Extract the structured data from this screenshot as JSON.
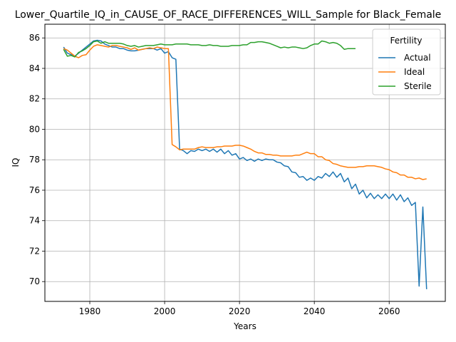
{
  "chart_data": {
    "type": "line",
    "title": "Lower_Quartile_IQ_in_CAUSE_OF_RACE_DIFFERENCES_WILL_Sample for Black_Female",
    "xlabel": "Years",
    "ylabel": "IQ",
    "xlim": [
      1968,
      2075
    ],
    "ylim": [
      68.7,
      86.9
    ],
    "xticks": [
      1980,
      2000,
      2020,
      2040,
      2060
    ],
    "yticks": [
      70,
      72,
      74,
      76,
      78,
      80,
      82,
      84,
      86
    ],
    "grid": true,
    "legend": {
      "title": "Fertility",
      "placement": "top-right"
    },
    "series": [
      {
        "name": "Actual",
        "color": "#1f77b4",
        "points": [
          [
            1973,
            85.4
          ],
          [
            1974,
            85.0
          ],
          [
            1975,
            84.9
          ],
          [
            1976,
            84.8
          ],
          [
            1977,
            85.0
          ],
          [
            1978,
            85.2
          ],
          [
            1979,
            85.4
          ],
          [
            1980,
            85.6
          ],
          [
            1981,
            85.8
          ],
          [
            1982,
            85.85
          ],
          [
            1983,
            85.8
          ],
          [
            1984,
            85.6
          ],
          [
            1985,
            85.5
          ],
          [
            1986,
            85.4
          ],
          [
            1987,
            85.4
          ],
          [
            1988,
            85.3
          ],
          [
            1989,
            85.3
          ],
          [
            1990,
            85.2
          ],
          [
            1991,
            85.15
          ],
          [
            1992,
            85.15
          ],
          [
            1993,
            85.2
          ],
          [
            1994,
            85.25
          ],
          [
            1995,
            85.3
          ],
          [
            1996,
            85.3
          ],
          [
            1997,
            85.3
          ],
          [
            1998,
            85.2
          ],
          [
            1999,
            85.3
          ],
          [
            2000,
            85.0
          ],
          [
            2001,
            85.1
          ],
          [
            2002,
            84.7
          ],
          [
            2003,
            84.6
          ],
          [
            2004,
            78.7
          ],
          [
            2005,
            78.6
          ],
          [
            2006,
            78.4
          ],
          [
            2007,
            78.6
          ],
          [
            2008,
            78.55
          ],
          [
            2009,
            78.7
          ],
          [
            2010,
            78.6
          ],
          [
            2011,
            78.7
          ],
          [
            2012,
            78.55
          ],
          [
            2013,
            78.7
          ],
          [
            2014,
            78.5
          ],
          [
            2015,
            78.7
          ],
          [
            2016,
            78.4
          ],
          [
            2017,
            78.6
          ],
          [
            2018,
            78.3
          ],
          [
            2019,
            78.4
          ],
          [
            2020,
            78.05
          ],
          [
            2021,
            78.15
          ],
          [
            2022,
            77.95
          ],
          [
            2023,
            78.05
          ],
          [
            2024,
            77.9
          ],
          [
            2025,
            78.05
          ],
          [
            2026,
            77.95
          ],
          [
            2027,
            78.05
          ],
          [
            2028,
            78.0
          ],
          [
            2029,
            78.0
          ],
          [
            2030,
            77.85
          ],
          [
            2031,
            77.8
          ],
          [
            2032,
            77.6
          ],
          [
            2033,
            77.55
          ],
          [
            2034,
            77.2
          ],
          [
            2035,
            77.15
          ],
          [
            2036,
            76.85
          ],
          [
            2037,
            76.9
          ],
          [
            2038,
            76.65
          ],
          [
            2039,
            76.8
          ],
          [
            2040,
            76.65
          ],
          [
            2041,
            76.9
          ],
          [
            2042,
            76.8
          ],
          [
            2043,
            77.1
          ],
          [
            2044,
            76.9
          ],
          [
            2045,
            77.2
          ],
          [
            2046,
            76.85
          ],
          [
            2047,
            77.1
          ],
          [
            2048,
            76.55
          ],
          [
            2049,
            76.8
          ],
          [
            2050,
            76.1
          ],
          [
            2051,
            76.4
          ],
          [
            2052,
            75.75
          ],
          [
            2053,
            76.0
          ],
          [
            2054,
            75.5
          ],
          [
            2055,
            75.8
          ],
          [
            2056,
            75.45
          ],
          [
            2057,
            75.7
          ],
          [
            2058,
            75.45
          ],
          [
            2059,
            75.75
          ],
          [
            2060,
            75.45
          ],
          [
            2061,
            75.75
          ],
          [
            2062,
            75.35
          ],
          [
            2063,
            75.7
          ],
          [
            2064,
            75.25
          ],
          [
            2065,
            75.5
          ],
          [
            2066,
            75.0
          ],
          [
            2067,
            75.2
          ],
          [
            2068,
            69.7
          ],
          [
            2069,
            74.9
          ],
          [
            2070,
            69.5
          ]
        ]
      },
      {
        "name": "Ideal",
        "color": "#ff7f0e",
        "points": [
          [
            1973,
            85.3
          ],
          [
            1974,
            85.2
          ],
          [
            1975,
            85.0
          ],
          [
            1976,
            84.8
          ],
          [
            1977,
            84.7
          ],
          [
            1978,
            84.85
          ],
          [
            1979,
            84.9
          ],
          [
            1980,
            85.2
          ],
          [
            1981,
            85.45
          ],
          [
            1982,
            85.55
          ],
          [
            1983,
            85.5
          ],
          [
            1984,
            85.45
          ],
          [
            1985,
            85.4
          ],
          [
            1986,
            85.5
          ],
          [
            1987,
            85.5
          ],
          [
            1988,
            85.45
          ],
          [
            1989,
            85.4
          ],
          [
            1990,
            85.35
          ],
          [
            1991,
            85.25
          ],
          [
            1992,
            85.35
          ],
          [
            1993,
            85.2
          ],
          [
            1994,
            85.25
          ],
          [
            1995,
            85.3
          ],
          [
            1996,
            85.35
          ],
          [
            1997,
            85.3
          ],
          [
            1998,
            85.4
          ],
          [
            1999,
            85.35
          ],
          [
            2000,
            85.3
          ],
          [
            2001,
            85.3
          ],
          [
            2002,
            79.0
          ],
          [
            2003,
            78.85
          ],
          [
            2004,
            78.65
          ],
          [
            2005,
            78.7
          ],
          [
            2006,
            78.7
          ],
          [
            2007,
            78.7
          ],
          [
            2008,
            78.7
          ],
          [
            2009,
            78.8
          ],
          [
            2010,
            78.85
          ],
          [
            2011,
            78.8
          ],
          [
            2012,
            78.8
          ],
          [
            2013,
            78.8
          ],
          [
            2014,
            78.85
          ],
          [
            2015,
            78.85
          ],
          [
            2016,
            78.9
          ],
          [
            2017,
            78.9
          ],
          [
            2018,
            78.9
          ],
          [
            2019,
            78.95
          ],
          [
            2020,
            78.95
          ],
          [
            2021,
            78.9
          ],
          [
            2022,
            78.8
          ],
          [
            2023,
            78.7
          ],
          [
            2024,
            78.55
          ],
          [
            2025,
            78.45
          ],
          [
            2026,
            78.45
          ],
          [
            2027,
            78.35
          ],
          [
            2028,
            78.35
          ],
          [
            2029,
            78.3
          ],
          [
            2030,
            78.3
          ],
          [
            2031,
            78.25
          ],
          [
            2032,
            78.25
          ],
          [
            2033,
            78.25
          ],
          [
            2034,
            78.25
          ],
          [
            2035,
            78.3
          ],
          [
            2036,
            78.3
          ],
          [
            2037,
            78.4
          ],
          [
            2038,
            78.5
          ],
          [
            2039,
            78.4
          ],
          [
            2040,
            78.4
          ],
          [
            2041,
            78.2
          ],
          [
            2042,
            78.2
          ],
          [
            2043,
            78.0
          ],
          [
            2044,
            77.95
          ],
          [
            2045,
            77.75
          ],
          [
            2046,
            77.7
          ],
          [
            2047,
            77.6
          ],
          [
            2048,
            77.55
          ],
          [
            2049,
            77.5
          ],
          [
            2050,
            77.5
          ],
          [
            2051,
            77.5
          ],
          [
            2052,
            77.55
          ],
          [
            2053,
            77.55
          ],
          [
            2054,
            77.6
          ],
          [
            2055,
            77.6
          ],
          [
            2056,
            77.6
          ],
          [
            2057,
            77.55
          ],
          [
            2058,
            77.5
          ],
          [
            2059,
            77.4
          ],
          [
            2060,
            77.35
          ],
          [
            2061,
            77.2
          ],
          [
            2062,
            77.15
          ],
          [
            2063,
            77.0
          ],
          [
            2064,
            77.0
          ],
          [
            2065,
            76.85
          ],
          [
            2066,
            76.85
          ],
          [
            2067,
            76.75
          ],
          [
            2068,
            76.8
          ],
          [
            2069,
            76.7
          ],
          [
            2070,
            76.75
          ]
        ]
      },
      {
        "name": "Sterile",
        "color": "#2ca02c",
        "points": [
          [
            1973,
            85.25
          ],
          [
            1974,
            84.8
          ],
          [
            1975,
            84.85
          ],
          [
            1976,
            84.75
          ],
          [
            1977,
            85.05
          ],
          [
            1978,
            85.15
          ],
          [
            1979,
            85.3
          ],
          [
            1980,
            85.5
          ],
          [
            1981,
            85.75
          ],
          [
            1982,
            85.8
          ],
          [
            1983,
            85.65
          ],
          [
            1984,
            85.75
          ],
          [
            1985,
            85.65
          ],
          [
            1986,
            85.65
          ],
          [
            1987,
            85.65
          ],
          [
            1988,
            85.65
          ],
          [
            1989,
            85.6
          ],
          [
            1990,
            85.5
          ],
          [
            1991,
            85.45
          ],
          [
            1992,
            85.5
          ],
          [
            1993,
            85.4
          ],
          [
            1994,
            85.45
          ],
          [
            1995,
            85.5
          ],
          [
            1996,
            85.5
          ],
          [
            1997,
            85.5
          ],
          [
            1998,
            85.55
          ],
          [
            1999,
            85.6
          ],
          [
            2000,
            85.55
          ],
          [
            2001,
            85.55
          ],
          [
            2002,
            85.55
          ],
          [
            2003,
            85.6
          ],
          [
            2004,
            85.6
          ],
          [
            2005,
            85.6
          ],
          [
            2006,
            85.6
          ],
          [
            2007,
            85.55
          ],
          [
            2008,
            85.55
          ],
          [
            2009,
            85.55
          ],
          [
            2010,
            85.5
          ],
          [
            2011,
            85.5
          ],
          [
            2012,
            85.55
          ],
          [
            2013,
            85.5
          ],
          [
            2014,
            85.5
          ],
          [
            2015,
            85.45
          ],
          [
            2016,
            85.45
          ],
          [
            2017,
            85.45
          ],
          [
            2018,
            85.5
          ],
          [
            2019,
            85.5
          ],
          [
            2020,
            85.5
          ],
          [
            2021,
            85.55
          ],
          [
            2022,
            85.55
          ],
          [
            2023,
            85.7
          ],
          [
            2024,
            85.7
          ],
          [
            2025,
            85.75
          ],
          [
            2026,
            85.75
          ],
          [
            2027,
            85.7
          ],
          [
            2028,
            85.65
          ],
          [
            2029,
            85.55
          ],
          [
            2030,
            85.45
          ],
          [
            2031,
            85.35
          ],
          [
            2032,
            85.4
          ],
          [
            2033,
            85.35
          ],
          [
            2034,
            85.4
          ],
          [
            2035,
            85.4
          ],
          [
            2036,
            85.35
          ],
          [
            2037,
            85.3
          ],
          [
            2038,
            85.35
          ],
          [
            2039,
            85.5
          ],
          [
            2040,
            85.6
          ],
          [
            2041,
            85.6
          ],
          [
            2042,
            85.8
          ],
          [
            2043,
            85.75
          ],
          [
            2044,
            85.65
          ],
          [
            2045,
            85.7
          ],
          [
            2046,
            85.65
          ],
          [
            2047,
            85.5
          ],
          [
            2048,
            85.25
          ],
          [
            2049,
            85.3
          ],
          [
            2050,
            85.3
          ],
          [
            2051,
            85.3
          ]
        ]
      }
    ]
  }
}
